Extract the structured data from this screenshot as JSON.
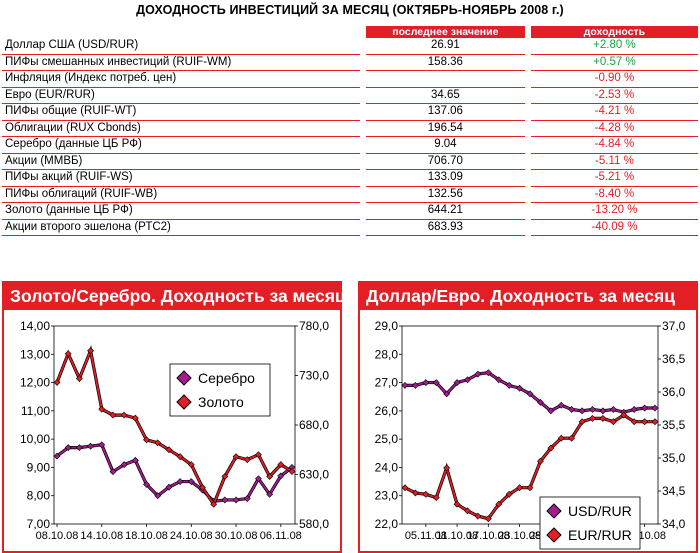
{
  "title": "ДОХОДНОСТЬ ИНВЕСТИЦИЙ ЗА МЕСЯЦ (ОКТЯБРЬ-НОЯБРЬ 2008 г.)",
  "table": {
    "headers": {
      "value": "последнее значение",
      "yield": "доходность"
    },
    "rows": [
      {
        "name": "Доллар США (USD/RUR)",
        "value": "26.91",
        "yield": "+2.80 %",
        "positive": true
      },
      {
        "name": "ПИФы смешанных инвестиций (RUIF-WM)",
        "value": "158.36",
        "yield": "+0.57 %",
        "positive": true
      },
      {
        "name": "Инфляция (Индекс потреб. цен)",
        "value": "",
        "yield": "-0.90 %",
        "positive": false
      },
      {
        "name": "Евро (EUR/RUR)",
        "value": "34.65",
        "yield": "-2.53 %",
        "positive": false
      },
      {
        "name": "ПИФы общие (RUIF-WT)",
        "value": "137.06",
        "yield": "-4.21 %",
        "positive": false
      },
      {
        "name": "Облигации (RUX Cbonds)",
        "value": "196.54",
        "yield": "-4.28 %",
        "positive": false
      },
      {
        "name": "Серебро (данные ЦБ РФ)",
        "value": "9.04",
        "yield": "-4.84 %",
        "positive": false
      },
      {
        "name": "Акции (ММВБ)",
        "value": "706.70",
        "yield": "-5.11 %",
        "positive": false
      },
      {
        "name": "ПИФы акций (RUIF-WS)",
        "value": "133.09",
        "yield": "-5.21 %",
        "positive": false
      },
      {
        "name": "ПИФы облигаций (RUIF-WB)",
        "value": "132.56",
        "yield": "-8.40 %",
        "positive": false
      },
      {
        "name": "Золото (данные ЦБ РФ)",
        "value": "644.21",
        "yield": "-13.20 %",
        "positive": false
      },
      {
        "name": "Акции второго эшелона (РТС2)",
        "value": "683.93",
        "yield": "-40.09 %",
        "positive": false
      }
    ]
  },
  "colors": {
    "accent": "#e31e24",
    "positive": "#1aa04b",
    "series_purple": "#a21c8f",
    "series_red": "#e31e24"
  },
  "chart_data": [
    {
      "type": "line",
      "title": "Золото/Серебро. Доходность за месяц",
      "x_ticks": [
        "08.10.08",
        "14.10.08",
        "18.10.08",
        "24.10.08",
        "30.10.08",
        "06.11.08"
      ],
      "x_tick_positions": [
        0,
        4,
        8,
        12,
        16,
        20
      ],
      "ylim_left": [
        7.0,
        14.0
      ],
      "yticks_left": [
        "7,00",
        "8,00",
        "9,00",
        "10,00",
        "11,00",
        "12,00",
        "13,00",
        "14,00"
      ],
      "ylim_right": [
        580.0,
        780.0
      ],
      "yticks_right": [
        "580,0",
        "630,0",
        "680,0",
        "730,0",
        "780,0"
      ],
      "series": [
        {
          "name": "Серебро",
          "axis": "left",
          "color": "#a21c8f",
          "values": [
            9.4,
            9.7,
            9.7,
            9.75,
            9.8,
            8.85,
            9.1,
            9.25,
            8.4,
            8.0,
            8.3,
            8.5,
            8.5,
            8.2,
            7.8,
            7.85,
            7.85,
            7.9,
            8.6,
            8.05,
            8.7,
            9.0
          ]
        },
        {
          "name": "Золото",
          "axis": "right",
          "color": "#e31e24",
          "values": [
            723,
            752,
            727,
            755,
            696,
            690,
            690,
            687,
            665,
            662,
            655,
            648,
            640,
            617,
            600,
            628,
            648,
            645,
            650,
            628,
            640,
            633
          ]
        }
      ]
    },
    {
      "type": "line",
      "title": "Доллар/Евро. Доходность за месяц",
      "x_ticks": [
        "05.11.08",
        "11.10.08",
        "17.10.08",
        "23.10.08",
        "29.10.08",
        "17.10.08",
        "23.10.08",
        "07.10.08"
      ],
      "x_tick_positions": [
        2,
        5,
        8,
        11,
        14,
        17,
        20,
        23
      ],
      "ylim_left": [
        22.0,
        29.0
      ],
      "yticks_left": [
        "22,0",
        "23,0",
        "24,0",
        "25,0",
        "26,0",
        "27,0",
        "28,0",
        "29,0"
      ],
      "ylim_right": [
        34.0,
        37.0
      ],
      "yticks_right": [
        "34,0",
        "34,5",
        "35,0",
        "35,5",
        "36,0",
        "36,5",
        "37,0"
      ],
      "series": [
        {
          "name": "USD/RUR",
          "axis": "left",
          "color": "#a21c8f",
          "values": [
            26.9,
            26.9,
            27.0,
            27.0,
            26.6,
            27.0,
            27.1,
            27.3,
            27.35,
            27.1,
            26.9,
            26.8,
            26.6,
            26.3,
            26.0,
            26.2,
            26.05,
            26.0,
            26.05,
            26.0,
            26.05,
            25.95,
            26.05,
            26.1,
            26.1
          ]
        },
        {
          "name": "EUR/RUR",
          "axis": "right",
          "color": "#e31e24",
          "values": [
            34.55,
            34.47,
            34.45,
            34.4,
            34.85,
            34.3,
            34.2,
            34.12,
            34.08,
            34.3,
            34.45,
            34.55,
            34.55,
            34.95,
            35.15,
            35.3,
            35.3,
            35.55,
            35.6,
            35.6,
            35.55,
            35.65,
            35.55,
            35.55,
            35.55
          ]
        }
      ]
    }
  ]
}
